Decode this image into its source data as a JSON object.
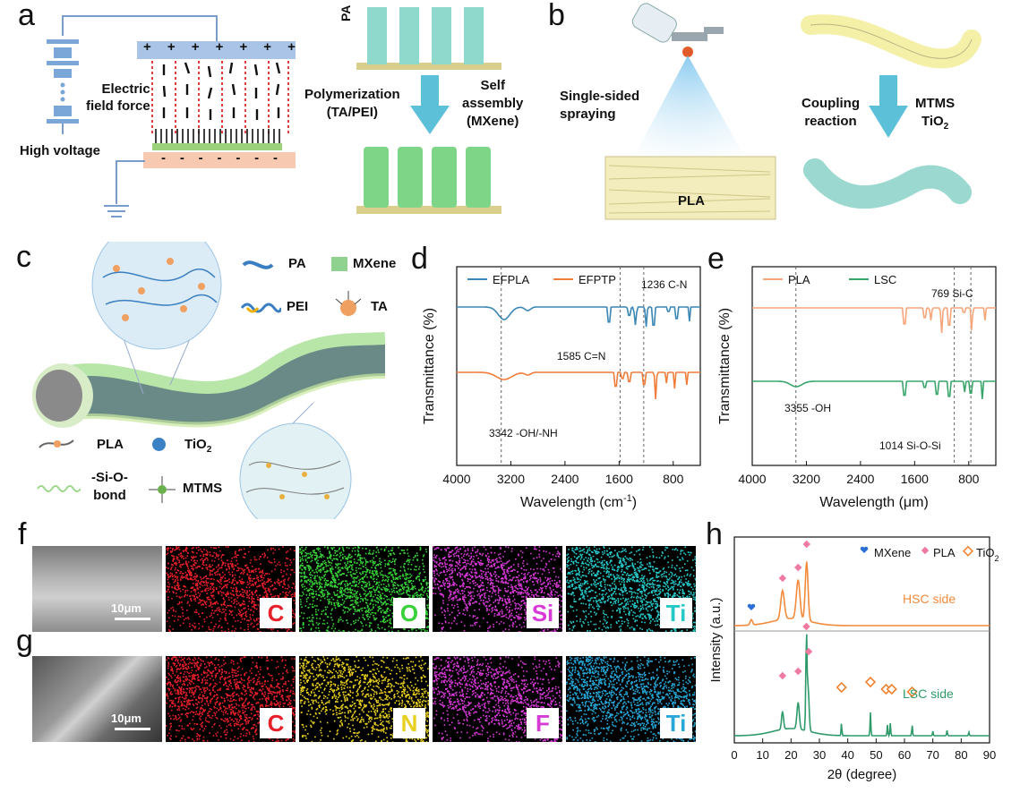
{
  "panel_labels": {
    "a": "a",
    "b": "b",
    "c": "c",
    "d": "d",
    "e": "e",
    "f": "f",
    "g": "g",
    "h": "h"
  },
  "panel_a": {
    "electric_field_force": [
      "Electric",
      "field force"
    ],
    "high_voltage": "High voltage",
    "pa_label": "PA",
    "polymerization": [
      "Polymerization",
      "(TA/PEI)"
    ],
    "self_assembly": [
      "Self",
      "assembly",
      "(MXene)"
    ],
    "plus_signs": [
      "+",
      "+",
      "+",
      "+",
      "+",
      "+",
      "+"
    ],
    "minus_signs": [
      "-",
      "-",
      "-",
      "-",
      "-",
      "-",
      "-"
    ]
  },
  "panel_b": {
    "single_sided_spraying": [
      "Single-sided",
      "spraying"
    ],
    "pla": "PLA",
    "coupling_reaction": [
      "Coupling",
      "reaction"
    ],
    "mtms": "MTMS",
    "tio2_base": "TiO",
    "tio2_sub": "2"
  },
  "panel_c": {
    "legend": {
      "pa": "PA",
      "mxene": "MXene",
      "pei": "PEI",
      "ta": "TA",
      "pla": "PLA",
      "tio2_base": "TiO",
      "tio2_sub": "2",
      "si_o_bond": [
        "-Si-O-",
        "bond"
      ],
      "mtms": "MTMS"
    },
    "colors": {
      "mxene": "#8fd18f",
      "pa": "#3a7fc1",
      "ta": "#f0a060",
      "tio2": "#3b82c4"
    }
  },
  "chart_data": [
    {
      "panel": "d",
      "type": "line",
      "xlabel_base": "Wavelength (cm",
      "xlabel_sup": "-1",
      "xlabel_end": ")",
      "ylabel": "Transmittance (%)",
      "xlim": [
        4000,
        400
      ],
      "xticks": [
        "4000",
        "3200",
        "2400",
        "1600",
        "800"
      ],
      "xtick_values": [
        4000,
        3200,
        2400,
        1600,
        800
      ],
      "series": [
        {
          "name": "EFPLA",
          "color": "#3a86b4"
        },
        {
          "name": "EFPTP",
          "color": "#f07c3a"
        }
      ],
      "annotations": [
        "3342 -OH/-NH",
        "1585 C=N",
        "1236 C-N"
      ],
      "dashed_lines": [
        3342,
        1585,
        1236
      ]
    },
    {
      "panel": "e",
      "type": "line",
      "xlabel": "Wavelength (μm)",
      "ylabel": "Transmittance (%)",
      "xlim": [
        4000,
        400
      ],
      "xticks": [
        "4000",
        "3200",
        "2400",
        "1600",
        "800"
      ],
      "xtick_values": [
        4000,
        3200,
        2400,
        1600,
        800
      ],
      "series": [
        {
          "name": "PLA",
          "color": "#f5a57a"
        },
        {
          "name": "LSC",
          "color": "#3aa56a"
        }
      ],
      "annotations": [
        "3355 -OH",
        "1014 Si-O-Si",
        "769 Si-C"
      ],
      "dashed_lines": [
        3355,
        1014,
        769
      ]
    },
    {
      "panel": "h",
      "type": "line",
      "xlabel": "2θ (degree)",
      "ylabel": "Intensity (a.u.)",
      "xlim": [
        0,
        90
      ],
      "xticks": [
        "0",
        "10",
        "20",
        "30",
        "40",
        "50",
        "60",
        "70",
        "80",
        "90"
      ],
      "xtick_values": [
        0,
        10,
        20,
        30,
        40,
        50,
        60,
        70,
        80,
        90
      ],
      "series": [
        {
          "name": "HSC side",
          "color": "#f28a3a"
        },
        {
          "name": "LSC side",
          "color": "#2e9a6a"
        }
      ],
      "legend": [
        "MXene",
        "PLA",
        "TiO"
      ],
      "legend_tio2_sub": "2",
      "peaks_hsc": [
        17,
        22.5,
        25.5
      ],
      "peaks_lsc": [
        17,
        22.5,
        25.5,
        37.8,
        48,
        54,
        55,
        62.7
      ]
    }
  ],
  "panel_f": {
    "scale_bar": "10μm",
    "elements": [
      "C",
      "O",
      "Si",
      "Ti"
    ],
    "element_colors": [
      "#e8202a",
      "#39d13a",
      "#d83ad8",
      "#27c8c8"
    ]
  },
  "panel_g": {
    "scale_bar": "10μm",
    "elements": [
      "C",
      "N",
      "F",
      "Ti"
    ],
    "element_colors": [
      "#e8202a",
      "#e8d020",
      "#d83ad8",
      "#27a8d8"
    ]
  }
}
